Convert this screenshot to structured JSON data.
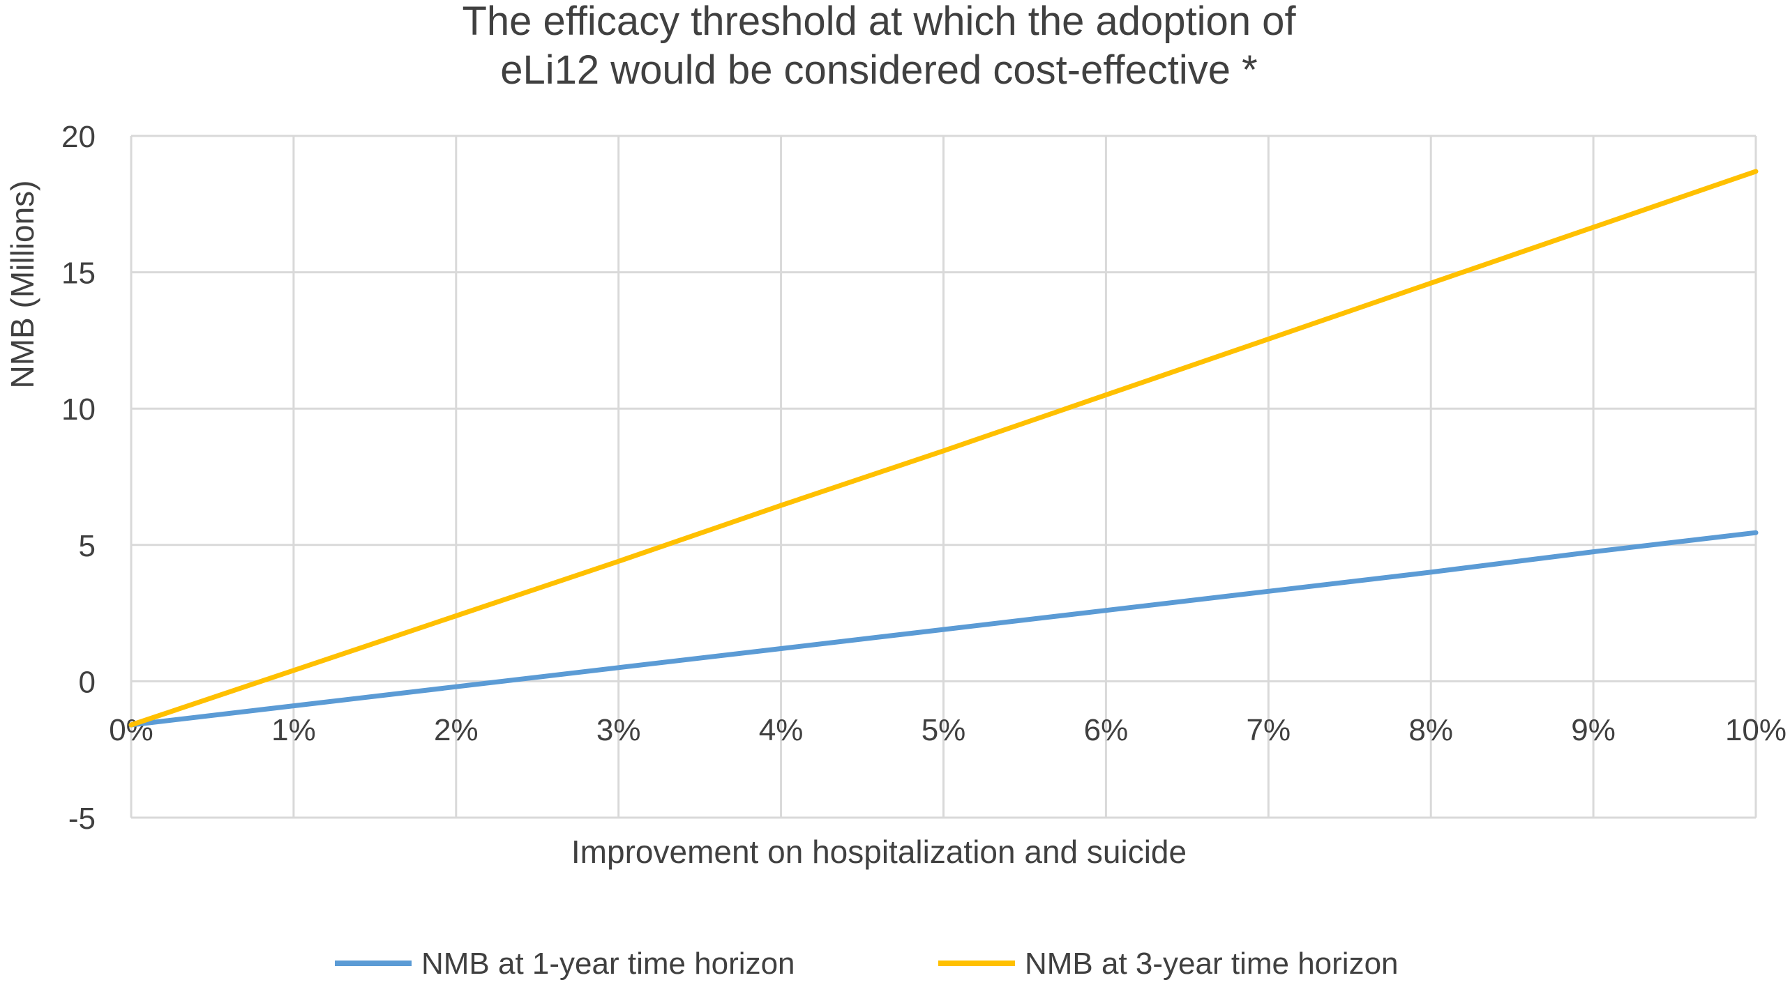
{
  "chart_data": {
    "type": "line",
    "title_lines": [
      "The efficacy threshold at which the adoption of",
      "eLi12 would be considered cost-effective *"
    ],
    "xlabel": "Improvement on hospitalization and suicide",
    "ylabel": "NMB (Millions)",
    "x": [
      0,
      1,
      2,
      3,
      4,
      5,
      6,
      7,
      8,
      9,
      10
    ],
    "x_tick_labels": [
      "0%",
      "1%",
      "2%",
      "3%",
      "4%",
      "5%",
      "6%",
      "7%",
      "8%",
      "9%",
      "10%"
    ],
    "xlim": [
      0,
      10
    ],
    "ylim": [
      -5,
      20
    ],
    "y_ticks": [
      -5,
      0,
      5,
      10,
      15,
      20
    ],
    "y_tick_labels": [
      "-5",
      "0",
      "5",
      "10",
      "15",
      "20"
    ],
    "grid": true,
    "legend_position": "bottom",
    "series": [
      {
        "name": "NMB at 1-year time horizon",
        "color": "#5B9BD5",
        "values": [
          -1.6,
          -0.9,
          -0.2,
          0.5,
          1.2,
          1.9,
          2.6,
          3.3,
          4.0,
          4.75,
          5.45
        ]
      },
      {
        "name": "NMB at 3-year time horizon",
        "color": "#FFC000",
        "values": [
          -1.6,
          0.4,
          2.4,
          4.4,
          6.45,
          8.45,
          10.5,
          12.55,
          14.6,
          16.65,
          18.7
        ]
      }
    ]
  }
}
